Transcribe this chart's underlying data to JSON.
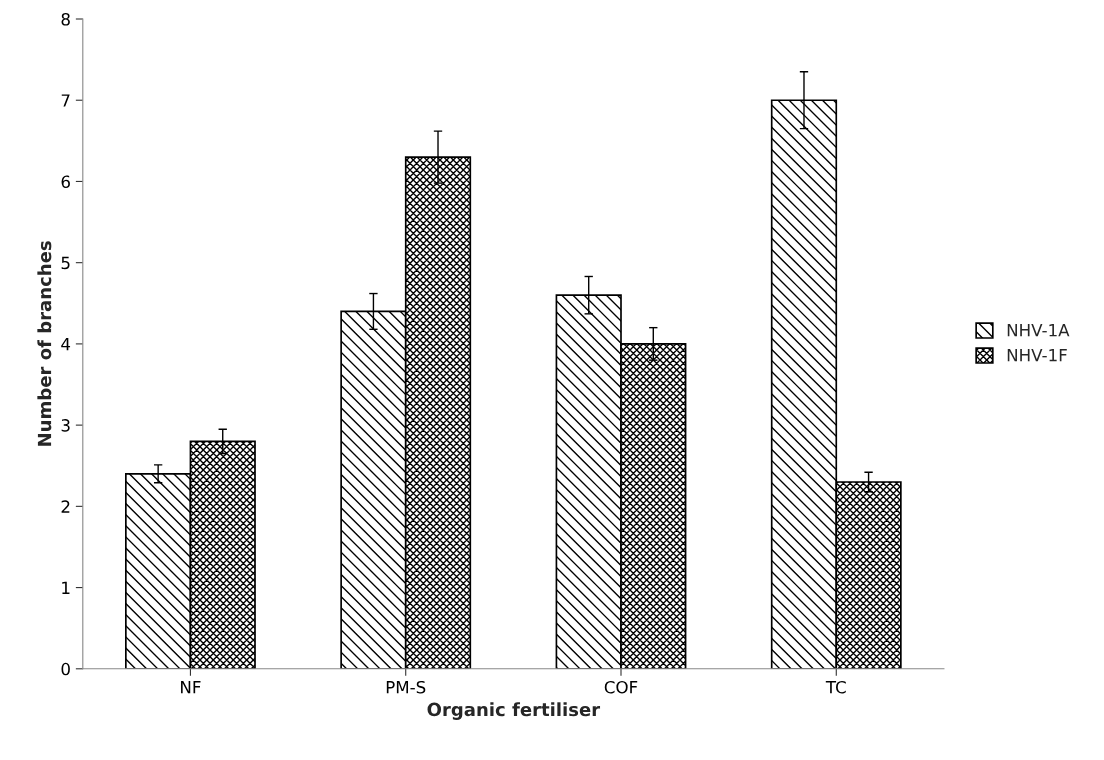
{
  "chart_data": {
    "type": "bar",
    "xlabel": "Organic fertiliser",
    "ylabel": "Number of branches",
    "categories": [
      "NF",
      "PM-S",
      "COF",
      "TC"
    ],
    "series": [
      {
        "name": "NHV-1A",
        "color": "#000000",
        "values": [
          2.4,
          4.4,
          4.6,
          7.0
        ],
        "errors": [
          0.11,
          0.22,
          0.23,
          0.35
        ]
      },
      {
        "name": "NHV-1F",
        "color": "#000000",
        "values": [
          2.8,
          6.3,
          4.0,
          2.3
        ],
        "errors": [
          0.15,
          0.32,
          0.2,
          0.12
        ]
      }
    ],
    "ylim": [
      0,
      8
    ],
    "yticks": [
      0,
      1,
      2,
      3,
      4,
      5,
      6,
      7,
      8
    ],
    "grid": false,
    "legend": "right"
  }
}
